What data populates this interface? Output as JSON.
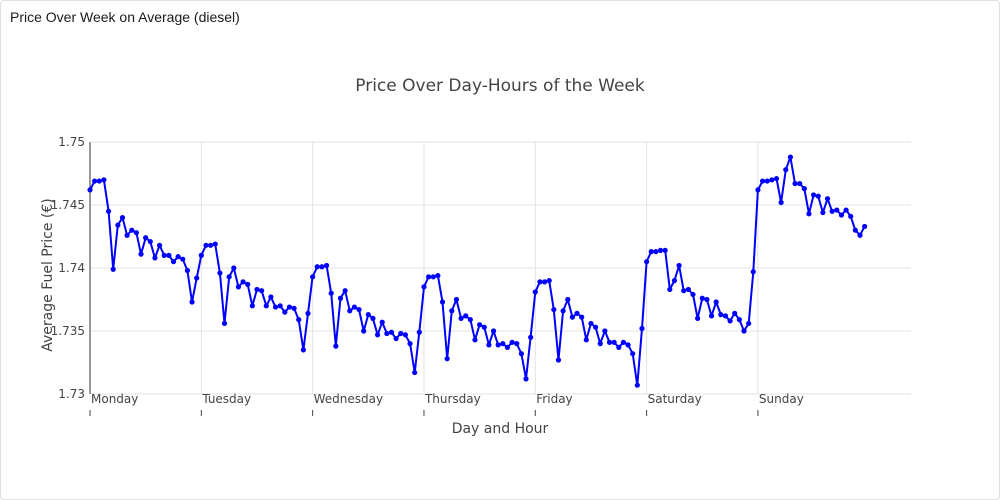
{
  "card": {
    "title": "Price Over Week on Average (diesel)"
  },
  "chart_data": {
    "type": "line",
    "title": "Price Over Day-Hours of the Week",
    "xlabel": "Day and Hour",
    "ylabel": "Average Fuel Price (€)",
    "ylim": [
      1.73,
      1.75
    ],
    "yticks": [
      "1.73",
      "1.735",
      "1.74",
      "1.745",
      "1.75"
    ],
    "ytick_values": [
      1.73,
      1.735,
      1.74,
      1.745,
      1.75
    ],
    "xlim": [
      0,
      177
    ],
    "categories": [
      "Monday",
      "Tuesday",
      "Wednesday",
      "Thursday",
      "Friday",
      "Saturday",
      "Sunday"
    ],
    "category_x": [
      0,
      24,
      48,
      72,
      96,
      120,
      144
    ],
    "grid": true,
    "line_color": "#0000ff",
    "series": [
      {
        "x": [
          0,
          1,
          2,
          3,
          4,
          5,
          6,
          7,
          8,
          9,
          10,
          11,
          12,
          13,
          14,
          15,
          16,
          17,
          18,
          19,
          20,
          21,
          22,
          23,
          24,
          25,
          26,
          27,
          28,
          29,
          30,
          31,
          32,
          33,
          34,
          35,
          36,
          37,
          38,
          39,
          40,
          41,
          42,
          43,
          44,
          45,
          46,
          47,
          48,
          49,
          50,
          51,
          52,
          53,
          54,
          55,
          56,
          57,
          58,
          59,
          60,
          61,
          62,
          63,
          64,
          65,
          66,
          67,
          68,
          69,
          70,
          71,
          72,
          73,
          74,
          75,
          76,
          77,
          78,
          79,
          80,
          81,
          82,
          83,
          84,
          85,
          86,
          87,
          88,
          89,
          90,
          91,
          92,
          93,
          94,
          95,
          96,
          97,
          98,
          99,
          100,
          101,
          102,
          103,
          104,
          105,
          106,
          107,
          108,
          109,
          110,
          111,
          112,
          113,
          114,
          115,
          116,
          117,
          118,
          119,
          120,
          121,
          122,
          123,
          124,
          125,
          126,
          127,
          128,
          129,
          130,
          131,
          132,
          133,
          134,
          135,
          136,
          137,
          138,
          139,
          140,
          141,
          142,
          143,
          144,
          145,
          146,
          147,
          148,
          149,
          150,
          151,
          152,
          153,
          154,
          155,
          156,
          157,
          158,
          159,
          160,
          161,
          162,
          163,
          164,
          165,
          166,
          167
        ],
        "y": [
          1.7462,
          1.7469,
          1.7469,
          1.747,
          1.7445,
          1.7399,
          1.7434,
          1.744,
          1.7426,
          1.743,
          1.7428,
          1.7411,
          1.7424,
          1.7421,
          1.7408,
          1.7418,
          1.741,
          1.741,
          1.7405,
          1.7409,
          1.7407,
          1.7398,
          1.7373,
          1.7392,
          1.741,
          1.7418,
          1.7418,
          1.7419,
          1.7396,
          1.7356,
          1.7393,
          1.74,
          1.7385,
          1.7389,
          1.7387,
          1.737,
          1.7383,
          1.7382,
          1.737,
          1.7377,
          1.7369,
          1.737,
          1.7365,
          1.7369,
          1.7368,
          1.7359,
          1.7335,
          1.7364,
          1.7393,
          1.7401,
          1.7401,
          1.7402,
          1.738,
          1.7338,
          1.7376,
          1.7382,
          1.7366,
          1.7369,
          1.7367,
          1.735,
          1.7363,
          1.736,
          1.7347,
          1.7357,
          1.7348,
          1.7349,
          1.7344,
          1.7348,
          1.7347,
          1.734,
          1.7317,
          1.7349,
          1.7385,
          1.7393,
          1.7393,
          1.7394,
          1.7373,
          1.7328,
          1.7366,
          1.7375,
          1.736,
          1.7362,
          1.7359,
          1.7343,
          1.7355,
          1.7353,
          1.7339,
          1.735,
          1.7339,
          1.734,
          1.7337,
          1.7341,
          1.734,
          1.7332,
          1.7312,
          1.7345,
          1.7381,
          1.7389,
          1.7389,
          1.739,
          1.7367,
          1.7327,
          1.7366,
          1.7375,
          1.7361,
          1.7364,
          1.7361,
          1.7343,
          1.7356,
          1.7353,
          1.734,
          1.735,
          1.7341,
          1.7341,
          1.7337,
          1.7341,
          1.7339,
          1.7332,
          1.7307,
          1.7352,
          1.7405,
          1.7413,
          1.7413,
          1.7414,
          1.7414,
          1.7383,
          1.739,
          1.7402,
          1.7382,
          1.7383,
          1.7379,
          1.736,
          1.7376,
          1.7375,
          1.7362,
          1.7373,
          1.7363,
          1.7362,
          1.7358,
          1.7364,
          1.7359,
          1.735,
          1.7356,
          1.7397,
          1.7462,
          1.7469,
          1.7469,
          1.747,
          1.7471,
          1.7452,
          1.7478,
          1.7488,
          1.7467,
          1.7467,
          1.7463,
          1.7443,
          1.7458,
          1.7457,
          1.7444,
          1.7455,
          1.7445,
          1.7446,
          1.7442,
          1.7446,
          1.7441,
          1.743,
          1.7426,
          1.7433
        ]
      }
    ]
  }
}
